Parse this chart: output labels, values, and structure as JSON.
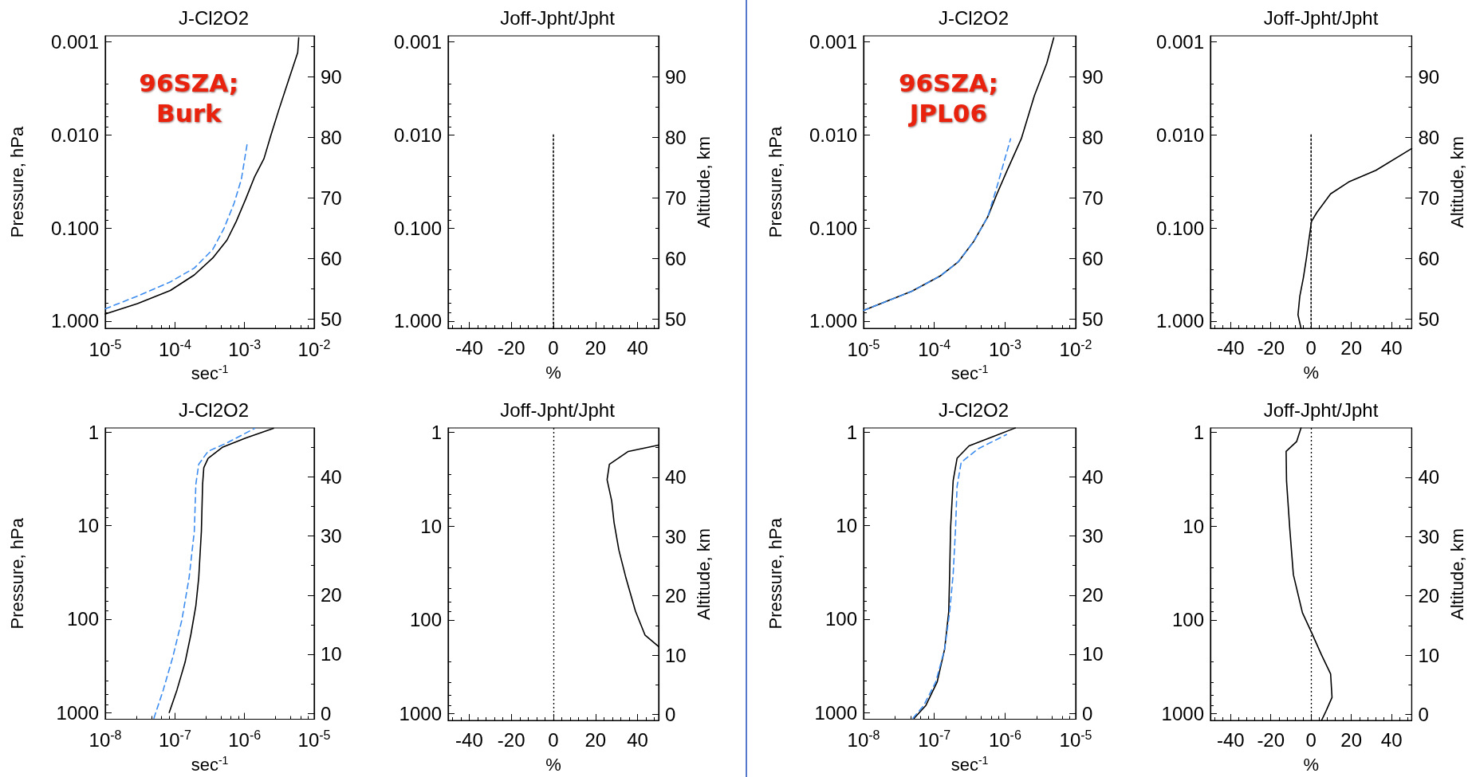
{
  "chart_data": [
    {
      "type": "line",
      "title": "J-Cl2O2",
      "xlabel": "sec$^{-1}$",
      "ylabel": "Pressure, hPa",
      "log": "xy",
      "xlim": [
        1e-05,
        0.01
      ],
      "xticks": [
        {
          "value": 1e-05,
          "label": "10$^{-5}$"
        },
        {
          "value": 0.0001,
          "label": "10$^{-4}$"
        },
        {
          "value": 0.001,
          "label": "10$^{-3}$"
        },
        {
          "value": 0.01,
          "label": "10$^{-2}$"
        }
      ],
      "ylim": [
        1.2,
        0.00086
      ],
      "yticks": [
        0.001,
        {
          "value": 0.01,
          "label": "0.010"
        },
        {
          "value": 0.1,
          "label": "0.100"
        },
        {
          "value": 1,
          "label": "1.000"
        }
      ],
      "y2lim": [
        48.5,
        96.8
      ],
      "y2ticks": [
        50,
        60,
        70,
        80,
        90
      ],
      "annotations": [
        "96SZA;\nBurk"
      ],
      "series": [
        {
          "color": "#000000",
          "line_style": "solid",
          "x": [
            1e-05,
            2.9e-05,
            8.6e-05,
            0.00019,
            0.00035,
            0.00056,
            0.00076,
            0.00105,
            0.0014,
            0.0019,
            0.0024,
            0.0031,
            0.0042,
            0.0058,
            0.006
          ],
          "values": [
            0.84,
            0.65,
            0.47,
            0.32,
            0.21,
            0.135,
            0.085,
            0.048,
            0.028,
            0.018,
            0.01,
            0.0054,
            0.0027,
            0.0013,
            0.0009
          ]
        },
        {
          "color": "#3c8cf0",
          "line_style": "dashed",
          "x": [
            1e-05,
            2.9e-05,
            8.6e-05,
            0.00019,
            0.00035,
            0.00051,
            0.00071,
            0.0009,
            0.0011
          ],
          "values": [
            0.74,
            0.54,
            0.38,
            0.27,
            0.17,
            0.1,
            0.054,
            0.03,
            0.012
          ]
        }
      ]
    },
    {
      "type": "line",
      "title": "Joff-Jpht/Jpht",
      "xlabel": "%",
      "y2label": "Altitude, km",
      "log": "y",
      "xlim": [
        -50,
        50
      ],
      "xticks": [
        -40,
        -20,
        0,
        20,
        40
      ],
      "ylim": [
        1.2,
        0.00086
      ],
      "yticks": [
        0.001,
        {
          "value": 0.01,
          "label": "0.010"
        },
        {
          "value": 0.1,
          "label": "0.100"
        },
        {
          "value": 1,
          "label": "1.000"
        }
      ],
      "y2lim": [
        48.5,
        96.8
      ],
      "y2ticks": [
        50,
        60,
        70,
        80,
        90
      ],
      "series": [
        {
          "color": "#000000",
          "line_style": "dotted",
          "x": [
            0,
            0
          ],
          "values": [
            0.01,
            1.2
          ]
        }
      ]
    },
    {
      "type": "line",
      "title": "J-Cl2O2",
      "xlabel": "sec$^{-1}$",
      "ylabel": "Pressure, hPa",
      "log": "xy",
      "xlim": [
        1e-05,
        0.01
      ],
      "xticks": [
        {
          "value": 1e-05,
          "label": "10$^{-5}$"
        },
        {
          "value": 0.0001,
          "label": "10$^{-4}$"
        },
        {
          "value": 0.001,
          "label": "10$^{-3}$"
        },
        {
          "value": 0.01,
          "label": "10$^{-2}$"
        }
      ],
      "ylim": [
        1.2,
        0.00086
      ],
      "yticks": [
        0.001,
        {
          "value": 0.01,
          "label": "0.010"
        },
        {
          "value": 0.1,
          "label": "0.100"
        },
        {
          "value": 1,
          "label": "1.000"
        }
      ],
      "y2lim": [
        48.5,
        96.8
      ],
      "y2ticks": [
        50,
        60,
        70,
        80,
        90
      ],
      "annotations": [
        "96SZA;\nJPL06"
      ],
      "series": [
        {
          "color": "#000000",
          "line_style": "solid",
          "x": [
            1e-05,
            4.8e-05,
            0.00012,
            0.00022,
            0.00036,
            0.00057,
            0.00077,
            0.0011,
            0.0017,
            0.0026,
            0.0039,
            0.0049
          ],
          "values": [
            0.77,
            0.48,
            0.33,
            0.23,
            0.14,
            0.076,
            0.043,
            0.023,
            0.011,
            0.0038,
            0.0017,
            0.0009
          ]
        },
        {
          "color": "#3c8cf0",
          "line_style": "dashed",
          "x": [
            1e-05,
            4.8e-05,
            0.00012,
            0.00022,
            0.00036,
            0.00057,
            0.00077,
            0.0012
          ],
          "values": [
            0.77,
            0.48,
            0.33,
            0.23,
            0.14,
            0.076,
            0.036,
            0.011
          ]
        }
      ]
    },
    {
      "type": "line",
      "title": "Joff-Jpht/Jpht",
      "xlabel": "%",
      "y2label": "Altitude, km",
      "log": "y",
      "xlim": [
        -50,
        50
      ],
      "xticks": [
        -40,
        -20,
        0,
        20,
        40
      ],
      "ylim": [
        1.2,
        0.00086
      ],
      "yticks": [
        0.001,
        {
          "value": 0.01,
          "label": "0.010"
        },
        {
          "value": 0.1,
          "label": "0.100"
        },
        {
          "value": 1,
          "label": "1.000"
        }
      ],
      "y2lim": [
        48.5,
        96.8
      ],
      "y2ticks": [
        50,
        60,
        70,
        80,
        90
      ],
      "series": [
        {
          "color": "#000000",
          "line_style": "dotted",
          "x": [
            0,
            0
          ],
          "values": [
            0.01,
            1.2
          ]
        },
        {
          "color": "#000000",
          "line_style": "solid",
          "x": [
            -5,
            -6.5,
            -5.6,
            -3.8,
            -2.3,
            -1.1,
            0.2,
            2.9,
            9.7,
            18.7,
            32.2,
            50
          ],
          "values": [
            1.2,
            0.86,
            0.54,
            0.34,
            0.21,
            0.135,
            0.085,
            0.068,
            0.043,
            0.032,
            0.024,
            0.014
          ]
        }
      ]
    },
    {
      "type": "line",
      "title": "J-Cl2O2",
      "xlabel": "sec$^{-1}$",
      "ylabel": "Pressure, hPa",
      "log": "xy",
      "xlim": [
        1e-08,
        1e-05
      ],
      "xticks": [
        {
          "value": 1e-08,
          "label": "10$^{-8}$"
        },
        {
          "value": 1e-07,
          "label": "10$^{-7}$"
        },
        {
          "value": 1e-06,
          "label": "10$^{-6}$"
        },
        {
          "value": 1e-05,
          "label": "10$^{-5}$"
        }
      ],
      "ylim": [
        1180,
        0.9
      ],
      "yticks": [
        1,
        10,
        100,
        1000
      ],
      "y2lim": [
        -1,
        48.3
      ],
      "y2ticks": [
        0,
        10,
        20,
        30,
        40
      ],
      "series": [
        {
          "color": "#000000",
          "line_style": "solid",
          "x": [
            8.3e-08,
            1.07e-07,
            1.4e-07,
            1.7e-07,
            2e-07,
            2.2e-07,
            2.4e-07,
            2.5e-07,
            2.6e-07,
            3e-07,
            4.8e-07,
            1.05e-06,
            2.6e-06
          ],
          "values": [
            1000,
            575,
            290,
            145,
            72,
            36,
            11.5,
            3.6,
            2.4,
            1.9,
            1.45,
            1.15,
            0.91
          ]
        },
        {
          "color": "#3c8cf0",
          "line_style": "dashed",
          "x": [
            5e-08,
            6.8e-08,
            9.3e-08,
            1.26e-07,
            1.6e-07,
            1.9e-07,
            2e-07,
            2.2e-07,
            3e-07,
            5.6e-07,
            1.4e-06
          ],
          "values": [
            1150,
            575,
            257,
            102,
            36,
            11.5,
            3.6,
            2.2,
            1.6,
            1.3,
            0.91
          ]
        }
      ]
    },
    {
      "type": "line",
      "title": "Joff-Jpht/Jpht",
      "xlabel": "%",
      "y2label": "Altitude, km",
      "log": "y",
      "xlim": [
        -50,
        50
      ],
      "xticks": [
        -40,
        -20,
        0,
        20,
        40
      ],
      "ylim": [
        1180,
        0.9
      ],
      "yticks": [
        1,
        10,
        100,
        1000
      ],
      "y2lim": [
        -1,
        48.3
      ],
      "y2ticks": [
        0,
        10,
        20,
        30,
        40
      ],
      "ref_lines": [
        {
          "axis": "x",
          "value": 0,
          "color": "#000000",
          "line_style": "dotted"
        }
      ],
      "series": [
        {
          "color": "#000000",
          "line_style": "solid",
          "x": [
            50,
            35.6,
            26.6,
            25.5,
            27.7,
            28.8,
            31.1,
            34.5,
            39,
            43.5,
            50
          ],
          "values": [
            1.37,
            1.6,
            2.2,
            3.2,
            5.4,
            9.1,
            18,
            36,
            81,
            145,
            193
          ]
        }
      ]
    },
    {
      "type": "line",
      "title": "J-Cl2O2",
      "xlabel": "sec$^{-1}$",
      "ylabel": "Pressure, hPa",
      "log": "xy",
      "xlim": [
        1e-08,
        1e-05
      ],
      "xticks": [
        {
          "value": 1e-08,
          "label": "10$^{-8}$"
        },
        {
          "value": 1e-07,
          "label": "10$^{-7}$"
        },
        {
          "value": 1e-06,
          "label": "10$^{-6}$"
        },
        {
          "value": 1e-05,
          "label": "10$^{-5}$"
        }
      ],
      "ylim": [
        1180,
        0.9
      ],
      "yticks": [
        1,
        10,
        100,
        1000
      ],
      "y2lim": [
        -1,
        48.3
      ],
      "y2ticks": [
        0,
        10,
        20,
        30,
        40
      ],
      "series": [
        {
          "color": "#000000",
          "line_style": "solid",
          "x": [
            5.2e-08,
            7.6e-08,
            1.1e-07,
            1.4e-07,
            1.6e-07,
            1.65e-07,
            1.7e-07,
            1.85e-07,
            2.1e-07,
            3.1e-07,
            6.6e-07,
            1.4e-06
          ],
          "values": [
            1150,
            840,
            470,
            210,
            84,
            33,
            10.6,
            3.3,
            1.9,
            1.4,
            1.12,
            0.9
          ]
        },
        {
          "color": "#3c8cf0",
          "line_style": "dashed",
          "x": [
            5e-08,
            7.1e-08,
            1.05e-07,
            1.4e-07,
            1.65e-07,
            1.85e-07,
            2e-07,
            2.1e-07,
            2.4e-07,
            4.2e-07,
            1.05e-06
          ],
          "values": [
            1150,
            840,
            470,
            210,
            84,
            33,
            10.6,
            3.8,
            2.1,
            1.5,
            1.06
          ]
        }
      ]
    },
    {
      "type": "line",
      "title": "Joff-Jpht/Jpht",
      "xlabel": "%",
      "y2label": "Altitude, km",
      "log": "y",
      "xlim": [
        -50,
        50
      ],
      "xticks": [
        -40,
        -20,
        0,
        20,
        40
      ],
      "ylim": [
        1180,
        0.9
      ],
      "yticks": [
        1,
        10,
        100,
        1000
      ],
      "y2lim": [
        -1,
        48.3
      ],
      "y2ticks": [
        0,
        10,
        20,
        30,
        40
      ],
      "ref_lines": [
        {
          "axis": "x",
          "value": 0,
          "color": "#000000",
          "line_style": "dotted"
        }
      ],
      "series": [
        {
          "color": "#000000",
          "line_style": "solid",
          "x": [
            -5,
            -7.2,
            -12.4,
            -12.2,
            -10.6,
            -8.8,
            -4.3,
            0,
            5.2,
            9.7,
            10.4,
            7.4,
            5.2
          ],
          "values": [
            0.9,
            1.26,
            1.6,
            3.3,
            10.6,
            33,
            84,
            133,
            237,
            376,
            670,
            940,
            1180
          ]
        }
      ]
    }
  ]
}
